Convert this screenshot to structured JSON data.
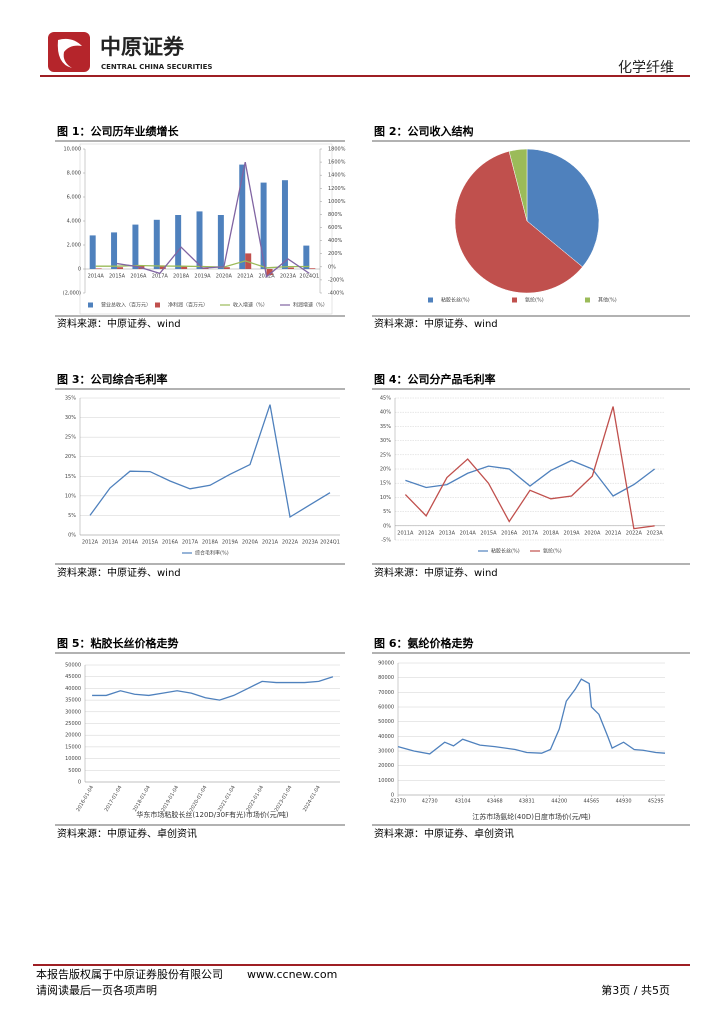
{
  "header": {
    "company": "中原证券",
    "company_en": "CENTRAL CHINA SECURITIES",
    "sector": "化学纤维"
  },
  "figures": [
    {
      "title": "图 1：公司历年业绩增长",
      "source": "资料来源：中原证券、wind"
    },
    {
      "title": "图 2：公司收入结构",
      "source": "资料来源：中原证券、wind"
    },
    {
      "title": "图 3：公司综合毛利率",
      "source": "资料来源：中原证券、wind"
    },
    {
      "title": "图 4：公司分产品毛利率",
      "source": "资料来源：中原证券、wind"
    },
    {
      "title": "图 5：粘胶长丝价格走势",
      "source": "资料来源：中原证券、卓创资讯"
    },
    {
      "title": "图 6：氨纶价格走势",
      "source": "资料来源：中原证券、卓创资讯"
    }
  ],
  "chart_data": [
    {
      "type": "bar",
      "categories": [
        "2014A",
        "2015A",
        "2016A",
        "2017A",
        "2018A",
        "2019A",
        "2020A",
        "2021A",
        "2022A",
        "2023A",
        "2024Q1"
      ],
      "series": [
        {
          "name": "营业总收入（百万元）",
          "color": "#4f81bd",
          "values": [
            2800,
            3050,
            3700,
            4100,
            4500,
            4800,
            4500,
            8700,
            7200,
            7400,
            1950
          ]
        },
        {
          "name": "净利润（百万元）",
          "color": "#c0504d",
          "values": [
            50,
            150,
            250,
            300,
            250,
            100,
            150,
            1300,
            -500,
            120,
            60
          ]
        },
        {
          "name": "收入增速（%）",
          "color": "#9bbb59",
          "type": "line",
          "axis": "y2",
          "values": [
            10,
            10,
            20,
            12,
            10,
            5,
            -5,
            90,
            -15,
            3,
            5
          ]
        },
        {
          "name": "利润增速（%）",
          "color": "#8064a2",
          "type": "line",
          "axis": "y2",
          "values": [
            null,
            50,
            0,
            -100,
            300,
            -20,
            0,
            1600,
            -150,
            120,
            -100
          ]
        }
      ],
      "ylim": [
        -2000,
        10000
      ],
      "yticks": [
        {
          "value": -2000,
          "label": "(2,000)"
        },
        0,
        {
          "value": 2000,
          "label": "2,000"
        },
        {
          "value": 4000,
          "label": "4,000"
        },
        {
          "value": 6000,
          "label": "6,000"
        },
        {
          "value": 8000,
          "label": "8,000"
        },
        {
          "value": 10000,
          "label": "10,000"
        }
      ],
      "y2lim": [
        -400,
        1800
      ],
      "y2ticks": [
        {
          "value": -400,
          "label": "-400%"
        },
        {
          "value": -200,
          "label": "-200%"
        },
        {
          "value": 0,
          "label": "0%"
        },
        {
          "value": 200,
          "label": "200%"
        },
        {
          "value": 400,
          "label": "400%"
        },
        {
          "value": 600,
          "label": "600%"
        },
        {
          "value": 800,
          "label": "800%"
        },
        {
          "value": 1000,
          "label": "1000%"
        },
        {
          "value": 1200,
          "label": "1200%"
        },
        {
          "value": 1400,
          "label": "1400%"
        },
        {
          "value": 1600,
          "label": "1600%"
        },
        {
          "value": 1800,
          "label": "1800%"
        }
      ],
      "grid": false
    },
    {
      "type": "pie",
      "categories": [
        "粘胶长丝(%)",
        "氨纶(%)",
        "其他(%)"
      ],
      "values": [
        36,
        60,
        4
      ],
      "colors": [
        "#4f81bd",
        "#c0504d",
        "#9bbb59"
      ]
    },
    {
      "type": "line",
      "categories": [
        "2012A",
        "2013A",
        "2014A",
        "2015A",
        "2016A",
        "2017A",
        "2018A",
        "2019A",
        "2020A",
        "2021A",
        "2022A",
        "2023A",
        "2024Q1"
      ],
      "series": [
        {
          "name": "综合毛利率(%)",
          "color": "#4f81bd",
          "values": [
            5,
            12,
            16.3,
            16.2,
            13.8,
            11.8,
            12.7,
            15.5,
            18,
            33.3,
            4.6,
            7.7,
            10.8
          ]
        }
      ],
      "ylim": [
        0,
        35
      ],
      "yticks": [
        {
          "value": 0,
          "label": "0%"
        },
        {
          "value": 5,
          "label": "5%"
        },
        {
          "value": 10,
          "label": "10%"
        },
        {
          "value": 15,
          "label": "15%"
        },
        {
          "value": 20,
          "label": "20%"
        },
        {
          "value": 25,
          "label": "25%"
        },
        {
          "value": 30,
          "label": "30%"
        },
        {
          "value": 35,
          "label": "35%"
        }
      ],
      "grid": true
    },
    {
      "type": "line",
      "categories": [
        "2011A",
        "2012A",
        "2013A",
        "2014A",
        "2015A",
        "2016A",
        "2017A",
        "2018A",
        "2019A",
        "2020A",
        "2021A",
        "2022A",
        "2023A"
      ],
      "series": [
        {
          "name": "粘胶长丝(%)",
          "color": "#4f81bd",
          "values": [
            16,
            13.5,
            14.5,
            18.5,
            21,
            20,
            14,
            19.5,
            23,
            20,
            10.5,
            14.5,
            20
          ]
        },
        {
          "name": "氨纶(%)",
          "color": "#c0504d",
          "values": [
            11,
            3.5,
            17,
            23.5,
            15,
            1.5,
            12.5,
            9.5,
            10.5,
            17.5,
            42,
            -1,
            0
          ]
        }
      ],
      "ylim": [
        -5,
        45
      ],
      "yticks": [
        {
          "value": -5,
          "label": "-5%"
        },
        {
          "value": 0,
          "label": "0%"
        },
        {
          "value": 5,
          "label": "5%"
        },
        {
          "value": 10,
          "label": "10%"
        },
        {
          "value": 15,
          "label": "15%"
        },
        {
          "value": 20,
          "label": "20%"
        },
        {
          "value": 25,
          "label": "25%"
        },
        {
          "value": 30,
          "label": "30%"
        },
        {
          "value": 35,
          "label": "35%"
        },
        {
          "value": 40,
          "label": "40%"
        },
        {
          "value": 45,
          "label": "45%"
        }
      ],
      "grid": true
    },
    {
      "type": "line",
      "categories": [
        "2016-01-04",
        null,
        "2017-01-04",
        null,
        "2018-01-04",
        null,
        "2019-01-04",
        null,
        "2020-01-04",
        null,
        "2021-01-04",
        null,
        "2022-01-04",
        null,
        "2023-01-04",
        null,
        "2024-01-04",
        null
      ],
      "series": [
        {
          "name": "华东市场粘胶长丝(120D/30F有光)市场价(元/吨)",
          "color": "#4f81bd",
          "values": [
            37000,
            37000,
            39000,
            37500,
            37000,
            38000,
            39000,
            38000,
            36000,
            35000,
            37000,
            40000,
            43000,
            42500,
            42500,
            42500,
            43000,
            45000
          ]
        }
      ],
      "ylim": [
        0,
        50000
      ],
      "yticks": [
        0,
        5000,
        10000,
        15000,
        20000,
        25000,
        30000,
        35000,
        40000,
        45000,
        50000
      ],
      "grid": true
    },
    {
      "type": "line",
      "x": [
        42370,
        42550,
        42730,
        42900,
        43000,
        43104,
        43300,
        43468,
        43700,
        43831,
        44000,
        44100,
        44200,
        44280,
        44380,
        44450,
        44540,
        44565,
        44650,
        44750,
        44800,
        44930,
        45050,
        45150,
        45295,
        45400
      ],
      "series": [
        {
          "name": "江苏市场氨纶(40D)日度市场价(元/吨)",
          "color": "#4f81bd",
          "values": [
            33000,
            30000,
            28000,
            36000,
            33500,
            38000,
            34000,
            33000,
            31000,
            29000,
            28500,
            31000,
            45000,
            64000,
            72000,
            79000,
            76000,
            60000,
            55000,
            40000,
            32000,
            36000,
            31000,
            30500,
            29000,
            28500
          ]
        }
      ],
      "xlim": [
        42370,
        45400
      ],
      "xticks": [
        42370,
        42730,
        43104,
        43468,
        43831,
        44200,
        44565,
        44930,
        45295
      ],
      "ylim": [
        0,
        90000
      ],
      "yticks": [
        0,
        10000,
        20000,
        30000,
        40000,
        50000,
        60000,
        70000,
        80000,
        90000
      ],
      "grid": true
    }
  ],
  "footer": {
    "copyright": "本报告版权属于中原证券股份有限公司",
    "url": "www.ccnew.com",
    "notice": "请阅读最后一页各项声明",
    "page": "第3页 / 共5页"
  }
}
